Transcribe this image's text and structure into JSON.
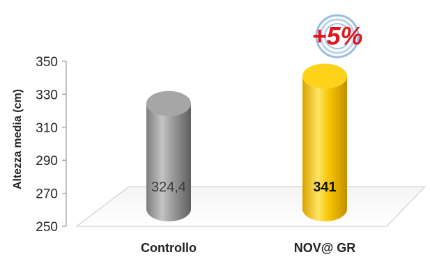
{
  "chart_data": {
    "type": "bar",
    "style": "3d-cylinder",
    "categories": [
      "Controllo",
      "NOV@ GR"
    ],
    "values": [
      324.4,
      341
    ],
    "value_labels": [
      "324,4",
      "341"
    ],
    "bar_colors": [
      "#8f8f8f",
      "#f2c200"
    ],
    "value_label_colors": [
      "#3a3a3a",
      "#111111"
    ],
    "ylabel": "Altezza media (cm)",
    "ylim": [
      250,
      350
    ],
    "yticks": [
      "250",
      "270",
      "290",
      "310",
      "330",
      "350"
    ],
    "ytick_values": [
      250,
      270,
      290,
      310,
      330,
      350
    ],
    "grid": false,
    "annotation": {
      "text": "+5%",
      "color": "#e0161c",
      "ring_color": "#7aa6d6"
    }
  }
}
